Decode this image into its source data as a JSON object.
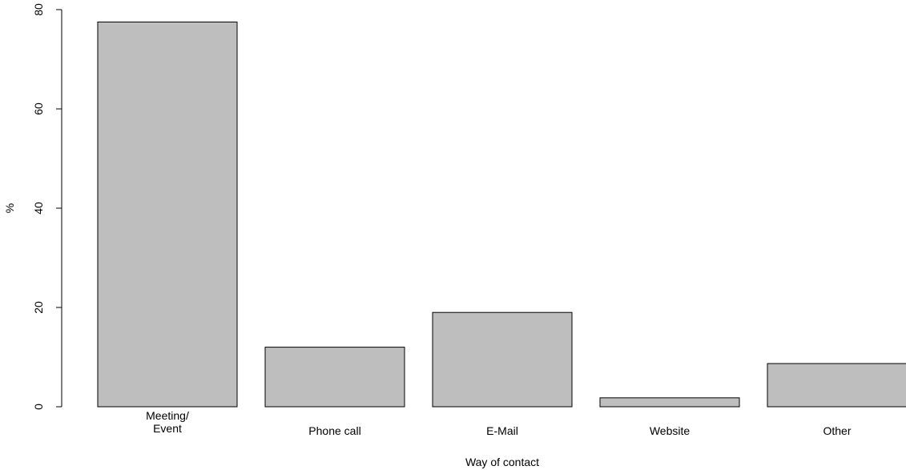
{
  "chart_data": {
    "type": "bar",
    "categories": [
      "Meeting/\nEvent",
      "Phone call",
      "E-Mail",
      "Website",
      "Other"
    ],
    "values": [
      77.5,
      12,
      19,
      1.8,
      8.7
    ],
    "title": "",
    "xlabel": "Way of contact",
    "ylabel": "%",
    "ylim": [
      0,
      80
    ],
    "yticks": [
      0,
      20,
      40,
      60,
      80
    ],
    "grid": false,
    "legend": "none",
    "colors": {
      "bar_fill": "#bebebe",
      "bar_stroke": "#000000",
      "axis": "#000000",
      "text": "#000000",
      "background": "#ffffff"
    }
  }
}
